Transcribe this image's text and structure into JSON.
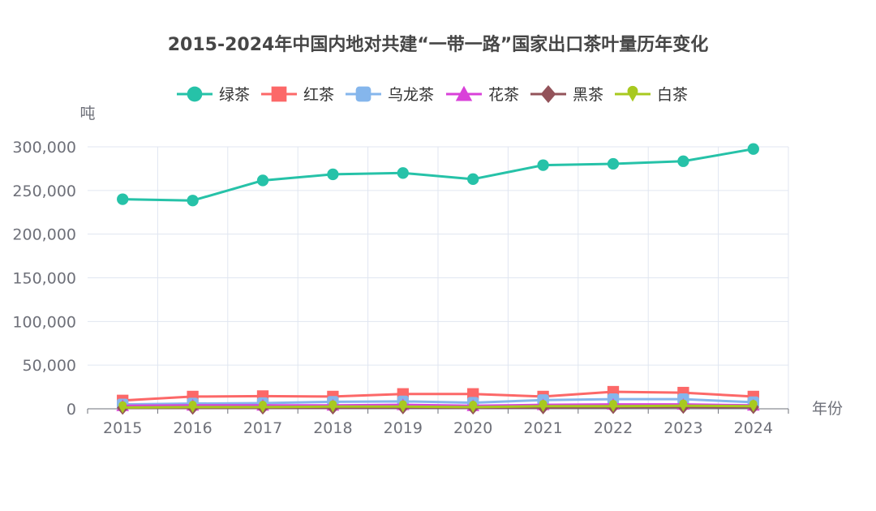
{
  "chart_data": {
    "type": "line",
    "title": "2015-2024年中国内地对共建“一带一路”国家出口茶叶量历年变化",
    "ylabel": "吨",
    "xlabel": "年份",
    "ylim": [
      0,
      300000
    ],
    "yticks": [
      "0",
      "50,000",
      "100,000",
      "150,000",
      "200,000",
      "250,000",
      "300,000"
    ],
    "categories": [
      "2015",
      "2016",
      "2017",
      "2018",
      "2019",
      "2020",
      "2021",
      "2022",
      "2023",
      "2024"
    ],
    "grid": true,
    "legend_position": "top",
    "series": [
      {
        "name": "绿茶",
        "color": "#26c2a8",
        "marker": "circle",
        "values": [
          240000,
          238500,
          261500,
          268500,
          270000,
          263000,
          279000,
          280500,
          283500,
          297500
        ]
      },
      {
        "name": "红茶",
        "color": "#fc6868",
        "marker": "square",
        "values": [
          9500,
          14000,
          14500,
          14000,
          17000,
          17000,
          14000,
          19500,
          18500,
          14000
        ]
      },
      {
        "name": "乌龙茶",
        "color": "#85b6ec",
        "marker": "roundrect",
        "values": [
          5000,
          6000,
          6500,
          8000,
          8500,
          7000,
          10000,
          11000,
          11000,
          7500
        ]
      },
      {
        "name": "花茶",
        "color": "#d941d9",
        "marker": "triangle",
        "values": [
          3500,
          4000,
          4000,
          4000,
          4500,
          3500,
          4500,
          5000,
          5000,
          4000
        ]
      },
      {
        "name": "黑茶",
        "color": "#93535a",
        "marker": "diamond",
        "values": [
          1000,
          1000,
          1200,
          1200,
          1500,
          1200,
          1500,
          1800,
          2000,
          1800
        ]
      },
      {
        "name": "白茶",
        "color": "#a8c91f",
        "marker": "pin",
        "values": [
          1500,
          2000,
          2000,
          2500,
          2500,
          2000,
          3000,
          3000,
          3500,
          3000
        ]
      }
    ]
  }
}
